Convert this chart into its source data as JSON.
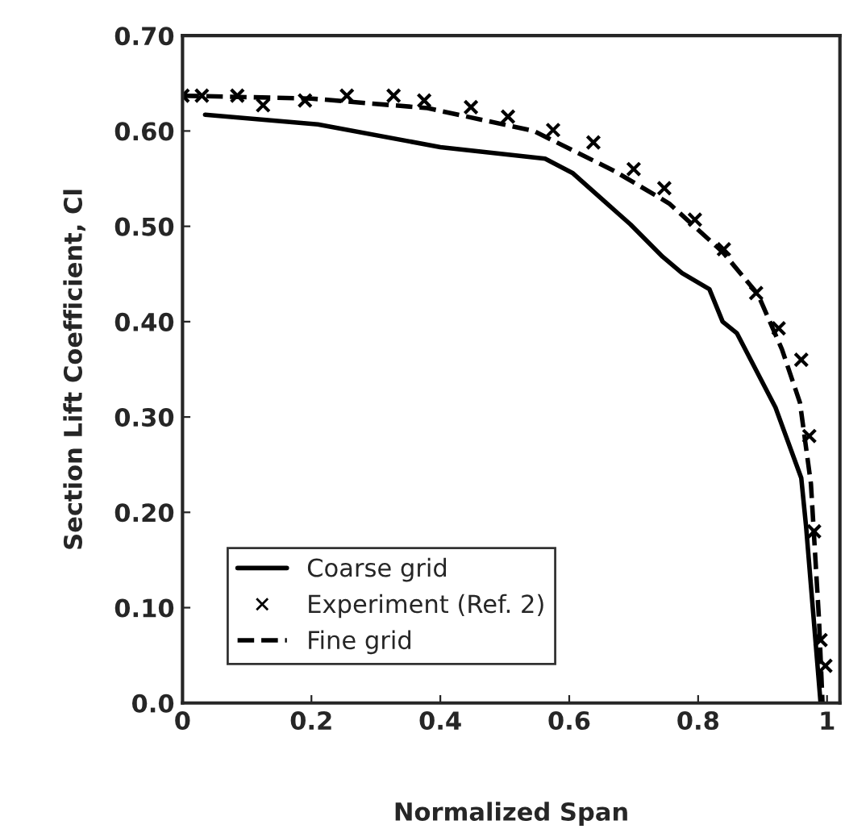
{
  "chart_data": {
    "type": "line",
    "xlabel": "Normalized Span",
    "ylabel": "Section Lift Coefficient, Cl",
    "xlim": [
      0,
      1.02
    ],
    "xticks": [
      0,
      0.2,
      0.4,
      0.6,
      0.8,
      1
    ],
    "ylim": [
      0,
      0.7
    ],
    "yticks": [
      {
        "value": 0,
        "label": "0.0"
      },
      {
        "value": 0.1,
        "label": "0.10"
      },
      {
        "value": 0.2,
        "label": "0.20"
      },
      {
        "value": 0.3,
        "label": "0.30"
      },
      {
        "value": 0.4,
        "label": "0.40"
      },
      {
        "value": 0.5,
        "label": "0.50"
      },
      {
        "value": 0.6,
        "label": "0.60"
      },
      {
        "value": 0.7,
        "label": "0.70"
      }
    ],
    "grid": false,
    "legend": "bottom left",
    "series": [
      {
        "name": "Coarse grid",
        "line_style": "solid",
        "color": "#000000",
        "x": [
          0.035,
          0.21,
          0.4,
          0.5625,
          0.605,
          0.695,
          0.745,
          0.775,
          0.8175,
          0.838,
          0.86,
          0.92,
          0.96,
          0.9675,
          0.99
        ],
        "values": [
          0.617,
          0.607,
          0.583,
          0.571,
          0.556,
          0.502,
          0.468,
          0.451,
          0.434,
          0.4,
          0.388,
          0.31,
          0.236,
          0.185,
          0
        ]
      },
      {
        "name": "Experiment (Ref. 2)",
        "type": "scatter",
        "marker": "cross",
        "color": "#000000",
        "x": [
          0.0,
          0.03,
          0.085,
          0.125,
          0.19,
          0.255,
          0.3275,
          0.375,
          0.4475,
          0.505,
          0.575,
          0.6375,
          0.7,
          0.7475,
          0.795,
          0.84,
          0.89,
          0.925,
          0.96,
          0.9725,
          0.98,
          0.99,
          0.9975
        ],
        "values": [
          0.637,
          0.637,
          0.637,
          0.627,
          0.632,
          0.637,
          0.637,
          0.632,
          0.625,
          0.615,
          0.601,
          0.588,
          0.56,
          0.54,
          0.507,
          0.476,
          0.43,
          0.393,
          0.36,
          0.28,
          0.18,
          0.066,
          0.039
        ]
      },
      {
        "name": "Fine grid",
        "line_style": "dashed",
        "color": "#000000",
        "x": [
          0.0,
          0.2,
          0.38,
          0.545,
          0.67,
          0.755,
          0.838,
          0.8925,
          0.93,
          0.958,
          0.975,
          0.9875,
          0.993
        ],
        "values": [
          0.637,
          0.634,
          0.624,
          0.6,
          0.558,
          0.524,
          0.473,
          0.429,
          0.371,
          0.315,
          0.23,
          0.088,
          0
        ]
      }
    ]
  }
}
